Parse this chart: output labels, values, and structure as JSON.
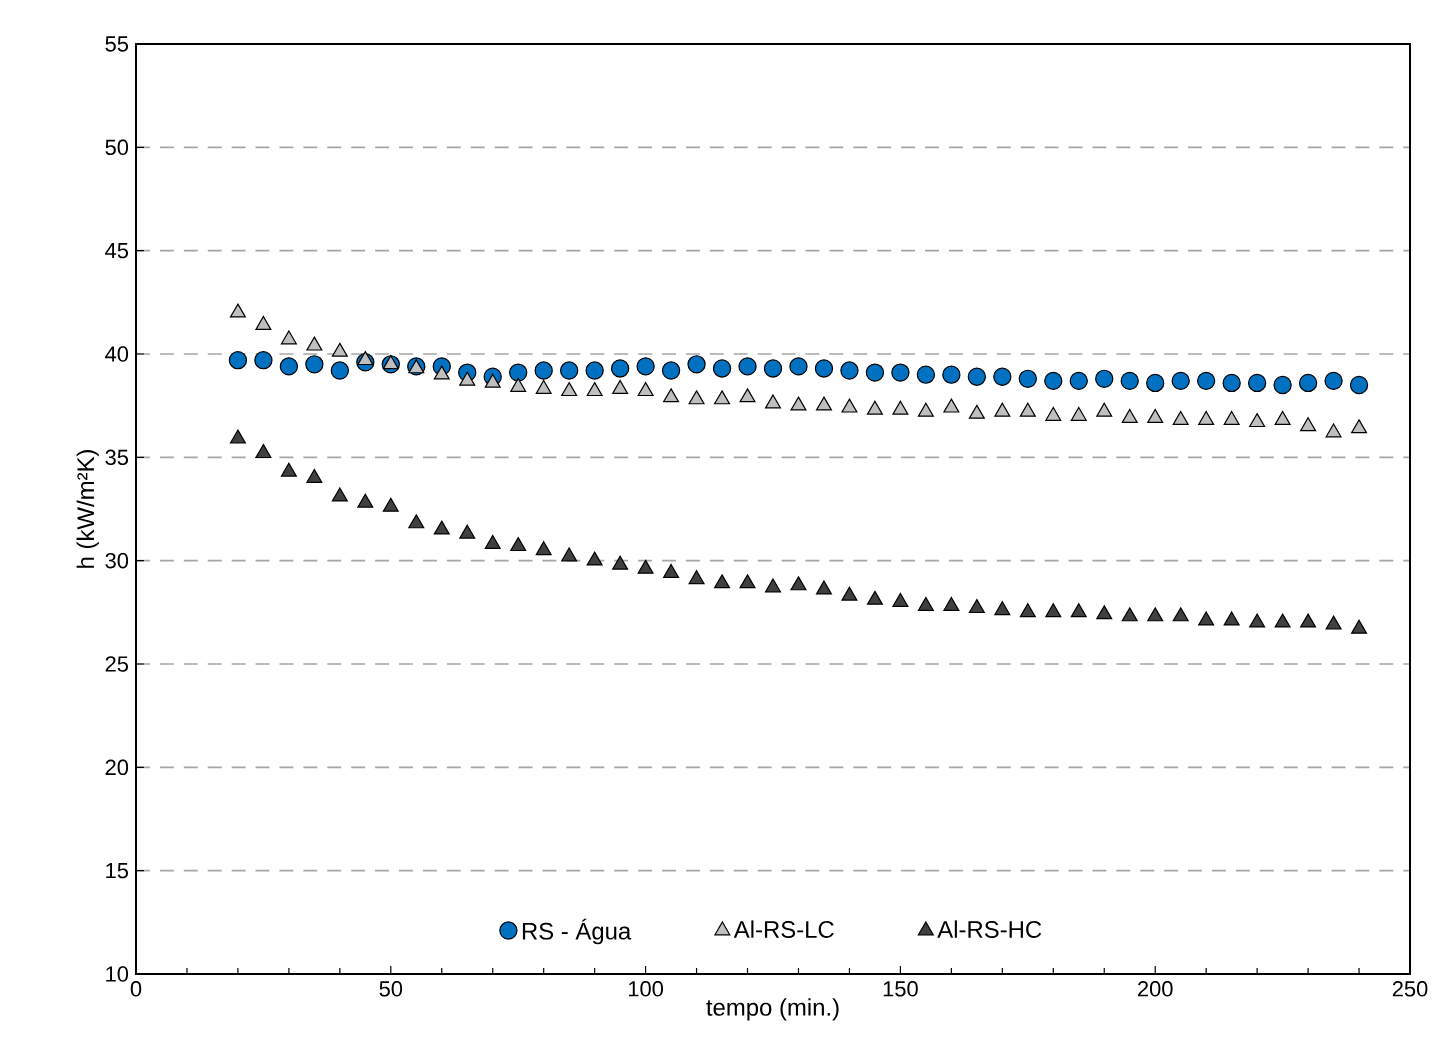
{
  "chart_data": {
    "type": "scatter",
    "xlabel": "tempo (min.)",
    "ylabel": "h (kW/m²K)",
    "x": [
      20,
      25,
      30,
      35,
      40,
      45,
      50,
      55,
      60,
      65,
      70,
      75,
      80,
      85,
      90,
      95,
      100,
      105,
      110,
      115,
      120,
      125,
      130,
      135,
      140,
      145,
      150,
      155,
      160,
      165,
      170,
      175,
      180,
      185,
      190,
      195,
      200,
      205,
      210,
      215,
      220,
      225,
      230,
      235,
      240
    ],
    "xlim": [
      0,
      250
    ],
    "xticks": [
      0,
      50,
      100,
      150,
      200,
      250
    ],
    "ylim": [
      10,
      55
    ],
    "yticks": [
      10,
      15,
      20,
      25,
      30,
      35,
      40,
      45,
      50,
      55
    ],
    "grid": "y",
    "legend": "bottom",
    "series": [
      {
        "name": "RS - Água",
        "color": "#0070c0",
        "marker": "circle",
        "values": [
          39.7,
          39.7,
          39.4,
          39.5,
          39.2,
          39.6,
          39.5,
          39.4,
          39.4,
          39.1,
          38.9,
          39.1,
          39.2,
          39.2,
          39.2,
          39.3,
          39.4,
          39.2,
          39.5,
          39.3,
          39.4,
          39.3,
          39.4,
          39.3,
          39.2,
          39.1,
          39.1,
          39.0,
          39.0,
          38.9,
          38.9,
          38.8,
          38.7,
          38.7,
          38.8,
          38.7,
          38.6,
          38.7,
          38.7,
          38.6,
          38.6,
          38.5,
          38.6,
          38.7,
          38.5
        ]
      },
      {
        "name": "Al-RS-LC",
        "color": "#bfbfbf",
        "marker": "triangle",
        "values": [
          42.0,
          41.4,
          40.7,
          40.4,
          40.1,
          39.7,
          39.5,
          39.3,
          39.0,
          38.7,
          38.6,
          38.4,
          38.3,
          38.2,
          38.2,
          38.3,
          38.2,
          37.9,
          37.8,
          37.8,
          37.9,
          37.6,
          37.5,
          37.5,
          37.4,
          37.3,
          37.3,
          37.2,
          37.4,
          37.1,
          37.2,
          37.2,
          37.0,
          37.0,
          37.2,
          36.9,
          36.9,
          36.8,
          36.8,
          36.8,
          36.7,
          36.8,
          36.5,
          36.2,
          36.4
        ]
      },
      {
        "name": "Al-RS-HC",
        "color": "#404040",
        "marker": "triangle",
        "values": [
          35.9,
          35.2,
          34.3,
          34.0,
          33.1,
          32.8,
          32.6,
          31.8,
          31.5,
          31.3,
          30.8,
          30.7,
          30.5,
          30.2,
          30.0,
          29.8,
          29.6,
          29.4,
          29.1,
          28.9,
          28.9,
          28.7,
          28.8,
          28.6,
          28.3,
          28.1,
          28.0,
          27.8,
          27.8,
          27.7,
          27.6,
          27.5,
          27.5,
          27.5,
          27.4,
          27.3,
          27.3,
          27.3,
          27.1,
          27.1,
          27.0,
          27.0,
          27.0,
          26.9,
          26.7
        ]
      }
    ]
  }
}
